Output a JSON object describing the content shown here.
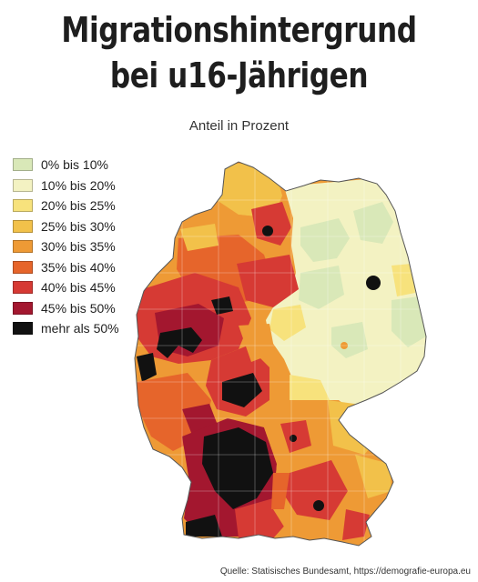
{
  "title": [
    "Migrationshintergrund",
    "bei u16-Jährigen"
  ],
  "subtitle": "Anteil in Prozent",
  "legend": [
    {
      "label": "0% bis 10%",
      "color": "#d9e8b8"
    },
    {
      "label": "10% bis 20%",
      "color": "#f3f2c2"
    },
    {
      "label": "20% bis 25%",
      "color": "#f7e27c"
    },
    {
      "label": "25% bis 30%",
      "color": "#f2c14a"
    },
    {
      "label": "30% bis 35%",
      "color": "#ee9a35"
    },
    {
      "label": "35% bis 40%",
      "color": "#e6652b"
    },
    {
      "label": "40% bis 45%",
      "color": "#d63a34"
    },
    {
      "label": "45% bis 50%",
      "color": "#a3172f"
    },
    {
      "label": "mehr als 50%",
      "color": "#111111"
    }
  ],
  "source": "Quelle: Statisisches Bundesamt, https://demografie-europa.eu"
}
